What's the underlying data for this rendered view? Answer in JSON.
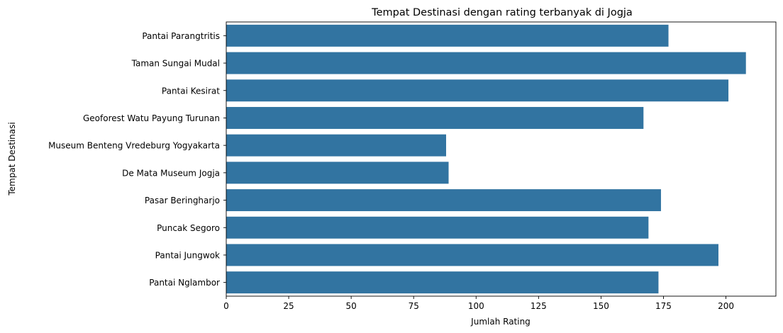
{
  "chart_data": {
    "type": "bar",
    "orientation": "horizontal",
    "title": "Tempat Destinasi dengan rating terbanyak di Jogja",
    "xlabel": "Jumlah Rating",
    "ylabel": "Tempat Destinasi",
    "categories": [
      "Pantai Parangtritis",
      "Taman Sungai Mudal",
      "Pantai Kesirat",
      "Geoforest Watu Payung Turunan",
      "Museum Benteng Vredeburg Yogyakarta",
      "De Mata Museum Jogja",
      "Pasar Beringharjo",
      "Puncak Segoro",
      "Pantai Jungwok",
      "Pantai Nglambor"
    ],
    "values": [
      177,
      208,
      201,
      167,
      88,
      89,
      174,
      169,
      197,
      173
    ],
    "xlim": [
      0,
      220
    ],
    "xticks": [
      0,
      25,
      50,
      75,
      100,
      125,
      150,
      175,
      200
    ],
    "xtick_labels": [
      "0",
      "25",
      "50",
      "75",
      "100",
      "125",
      "150",
      "175",
      "200"
    ],
    "bar_color": "#3274a1",
    "grid": false,
    "legend": "none"
  }
}
